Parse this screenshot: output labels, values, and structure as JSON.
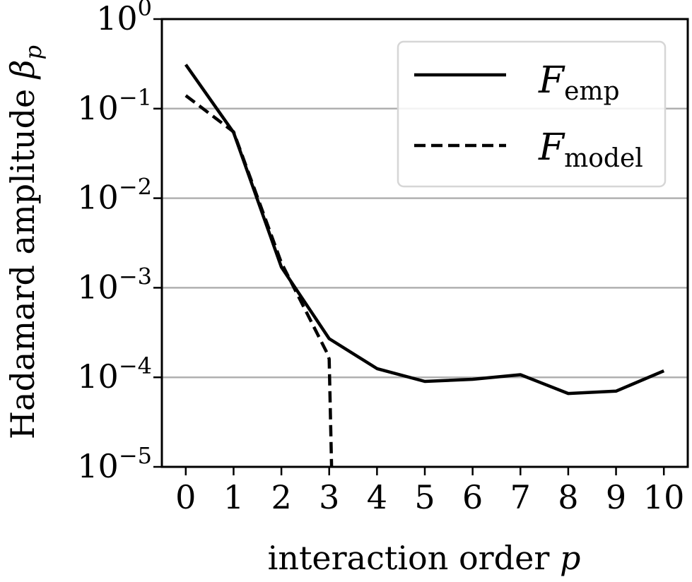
{
  "chart_data": {
    "type": "line",
    "xlabel_text": "interaction order ",
    "xlabel_symbol": "p",
    "ylabel_text": "Hadamard amplitude ",
    "ylabel_symbol": "β",
    "ylabel_subscript": "p",
    "yscale": "log",
    "ylim": [
      1e-05,
      1
    ],
    "xlim": [
      -0.5,
      10.5
    ],
    "x_ticks": [
      "0",
      "1",
      "2",
      "3",
      "4",
      "5",
      "6",
      "7",
      "8",
      "9",
      "10"
    ],
    "y_ticks": [
      {
        "base": "10",
        "exp": "0",
        "value": 1
      },
      {
        "base": "10",
        "exp": "−1",
        "value": 0.1
      },
      {
        "base": "10",
        "exp": "−2",
        "value": 0.01
      },
      {
        "base": "10",
        "exp": "−3",
        "value": 0.001
      },
      {
        "base": "10",
        "exp": "−4",
        "value": 0.0001
      },
      {
        "base": "10",
        "exp": "−5",
        "value": 1e-05
      }
    ],
    "grid": "horizontal",
    "legend_position": "top-right",
    "series": [
      {
        "name_main": "F",
        "name_sub": "emp",
        "style": "solid",
        "color": "#000000",
        "x": [
          0,
          1,
          2,
          3,
          4,
          5,
          6,
          7,
          8,
          9,
          10
        ],
        "y": [
          0.31,
          0.054,
          0.0017,
          0.00027,
          0.000125,
          9e-05,
          9.5e-05,
          0.000107,
          6.6e-05,
          7e-05,
          0.000118
        ]
      },
      {
        "name_main": "F",
        "name_sub": "model",
        "style": "dashed",
        "color": "#000000",
        "x": [
          0,
          1,
          2,
          2.95,
          3,
          3.05
        ],
        "y": [
          0.14,
          0.055,
          0.0019,
          0.00019,
          0.00016,
          1e-05
        ]
      }
    ]
  }
}
